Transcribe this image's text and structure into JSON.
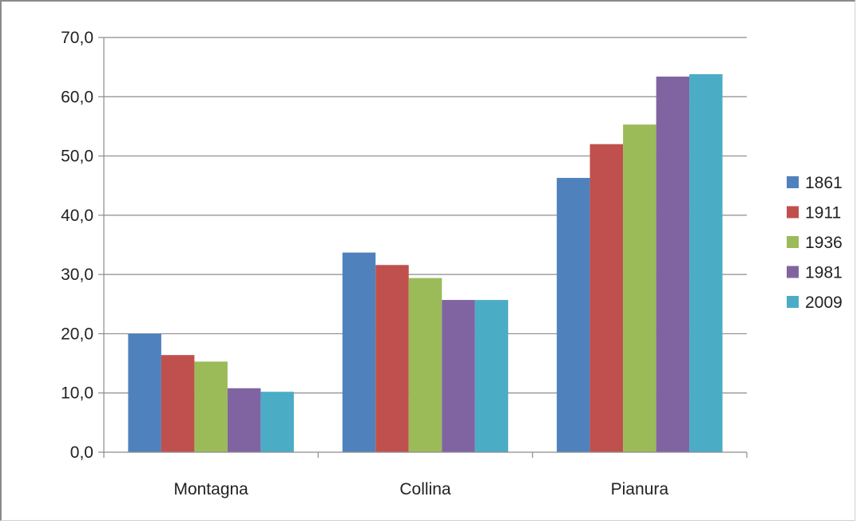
{
  "chart_data": {
    "type": "bar",
    "categories": [
      "Montagna",
      "Collina",
      "Pianura"
    ],
    "series": [
      {
        "name": "1861",
        "values": [
          20.0,
          33.7,
          46.3
        ],
        "color": "#4f81bd"
      },
      {
        "name": "1911",
        "values": [
          16.4,
          31.6,
          52.0
        ],
        "color": "#c0504d"
      },
      {
        "name": "1936",
        "values": [
          15.3,
          29.4,
          55.3
        ],
        "color": "#9bbb59"
      },
      {
        "name": "1981",
        "values": [
          10.8,
          25.7,
          63.4
        ],
        "color": "#8064a2"
      },
      {
        "name": "2009",
        "values": [
          10.2,
          25.7,
          63.8
        ],
        "color": "#4bacc6"
      }
    ],
    "yticks": [
      "0,0",
      "10,0",
      "20,0",
      "30,0",
      "40,0",
      "50,0",
      "60,0",
      "70,0"
    ],
    "ylim": [
      0,
      70
    ],
    "grid": true,
    "legend": "right"
  }
}
